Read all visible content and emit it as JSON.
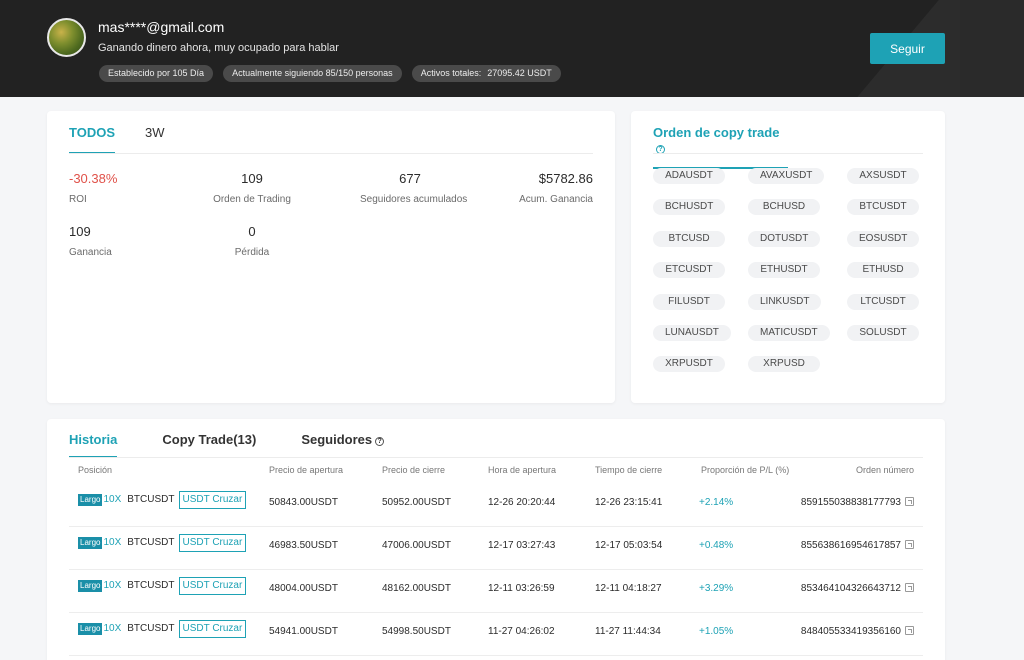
{
  "profile": {
    "email": "mas****@gmail.com",
    "tagline": "Ganando dinero ahora, muy ocupado para hablar",
    "badges": {
      "established": "Establecido por 105 Día",
      "following": "Actualmente siguiendo 85/150 personas",
      "assets_label": "Activos totales:",
      "assets_value": "27095.42 USDT"
    },
    "follow_label": "Seguir"
  },
  "stats": {
    "tabs": [
      "TODOS",
      "3W"
    ],
    "items": [
      {
        "value": "-30.38%",
        "label": "ROI"
      },
      {
        "value": "109",
        "label": "Orden de Trading"
      },
      {
        "value": "677",
        "label": "Seguidores acumulados"
      },
      {
        "value": "$5782.86",
        "label": "Acum. Ganancia"
      },
      {
        "value": "109",
        "label": "Ganancia"
      },
      {
        "value": "0",
        "label": "Pérdida"
      }
    ]
  },
  "pairs": {
    "title": "Orden de copy trade",
    "items": [
      "ADAUSDT",
      "AVAXUSDT",
      "AXSUSDT",
      "BCHUSDT",
      "BCHUSD",
      "BTCUSDT",
      "BTCUSD",
      "DOTUSDT",
      "EOSUSDT",
      "ETCUSDT",
      "ETHUSDT",
      "ETHUSD",
      "FILUSDT",
      "LINKUSDT",
      "LTCUSDT",
      "LUNAUSDT",
      "MATICUSDT",
      "SOLUSDT",
      "XRPUSDT",
      "XRPUSD"
    ]
  },
  "history": {
    "tabs": [
      "Historia",
      "Copy Trade(13)",
      "Seguidores"
    ],
    "columns": [
      "Posición",
      "Precio de apertura",
      "Precio de cierre",
      "Hora de apertura",
      "Tiempo de cierre",
      "Proporción de P/L (%)",
      "Orden número"
    ],
    "rows": [
      {
        "side": "Largo",
        "leverage": "10X",
        "symbol": "BTCUSDT",
        "margin": "USDT Cruzar",
        "open_price": "50843.00USDT",
        "close_price": "50952.00USDT",
        "open_time": "12-26 20:20:44",
        "close_time": "12-26 23:15:41",
        "pl": "+2.14%",
        "order": "859155038838177793"
      },
      {
        "side": "Largo",
        "leverage": "10X",
        "symbol": "BTCUSDT",
        "margin": "USDT Cruzar",
        "open_price": "46983.50USDT",
        "close_price": "47006.00USDT",
        "open_time": "12-17 03:27:43",
        "close_time": "12-17 05:03:54",
        "pl": "+0.48%",
        "order": "855638616954617857"
      },
      {
        "side": "Largo",
        "leverage": "10X",
        "symbol": "BTCUSDT",
        "margin": "USDT Cruzar",
        "open_price": "48004.00USDT",
        "close_price": "48162.00USDT",
        "open_time": "12-11 03:26:59",
        "close_time": "12-11 04:18:27",
        "pl": "+3.29%",
        "order": "853464104326643712"
      },
      {
        "side": "Largo",
        "leverage": "10X",
        "symbol": "BTCUSDT",
        "margin": "USDT Cruzar",
        "open_price": "54941.00USDT",
        "close_price": "54998.50USDT",
        "open_time": "11-27 04:26:02",
        "close_time": "11-27 11:44:34",
        "pl": "+1.05%",
        "order": "848405533419356160"
      }
    ]
  },
  "colors": {
    "accent": "#1ea2b5",
    "negative": "#e0524a",
    "header_bg": "#222222"
  }
}
